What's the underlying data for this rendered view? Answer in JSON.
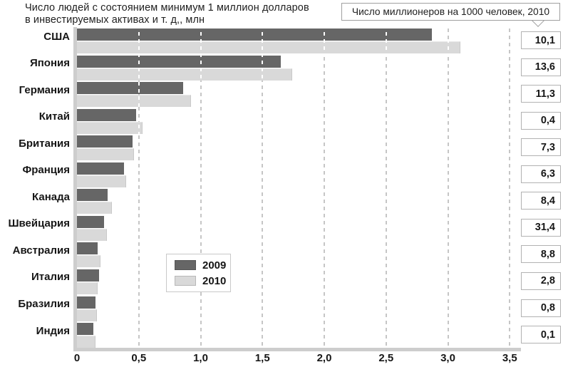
{
  "title": {
    "line1": "Число людей с состоянием минимум 1 миллион долларов",
    "line2": "в инвестируемых активах и т. д,, млн"
  },
  "callout": {
    "label": "Число миллионеров на 1000 человек, 2010"
  },
  "legend": {
    "items": [
      {
        "label": "2009",
        "color": "#666666"
      },
      {
        "label": "2010",
        "color": "#d9d9d9"
      }
    ]
  },
  "chart_data": {
    "type": "bar",
    "orientation": "horizontal",
    "title": "Число людей с состоянием минимум 1 миллион долларов в инвестируемых активах и т. д,, млн",
    "right_column_title": "Число миллионеров на 1000 человек, 2010",
    "categories": [
      "США",
      "Япония",
      "Германия",
      "Китай",
      "Британия",
      "Франция",
      "Канада",
      "Швейцария",
      "Австралия",
      "Италия",
      "Бразилия",
      "Индия"
    ],
    "series": [
      {
        "name": "2009",
        "color": "#666666",
        "values": [
          2.87,
          1.65,
          0.86,
          0.48,
          0.45,
          0.38,
          0.25,
          0.22,
          0.17,
          0.18,
          0.15,
          0.13
        ]
      },
      {
        "name": "2010",
        "color": "#d9d9d9",
        "values": [
          3.1,
          1.74,
          0.92,
          0.53,
          0.46,
          0.4,
          0.28,
          0.24,
          0.19,
          0.17,
          0.16,
          0.15
        ]
      }
    ],
    "millionaires_per_1000_2010": [
      10.1,
      13.6,
      11.3,
      0.4,
      7.3,
      6.3,
      8.4,
      31.4,
      8.8,
      2.8,
      0.8,
      0.1
    ],
    "millionaires_per_1000_2010_display": [
      "10,1",
      "13,6",
      "11,3",
      "0,4",
      "7,3",
      "6,3",
      "8,4",
      "31,4",
      "8,8",
      "2,8",
      "0,8",
      "0,1"
    ],
    "x_ticks": [
      {
        "value": 0,
        "label": "0"
      },
      {
        "value": 0.5,
        "label": "0,5"
      },
      {
        "value": 1,
        "label": "1,0"
      },
      {
        "value": 1.5,
        "label": "1,5"
      },
      {
        "value": 2,
        "label": "2,0"
      },
      {
        "value": 2.5,
        "label": "2,5"
      },
      {
        "value": 3,
        "label": "3,0"
      },
      {
        "value": 3.5,
        "label": "3,5"
      }
    ],
    "xlim": [
      0,
      3.5
    ],
    "grid": "vertical-dashed",
    "legend_position": "center-inside"
  }
}
